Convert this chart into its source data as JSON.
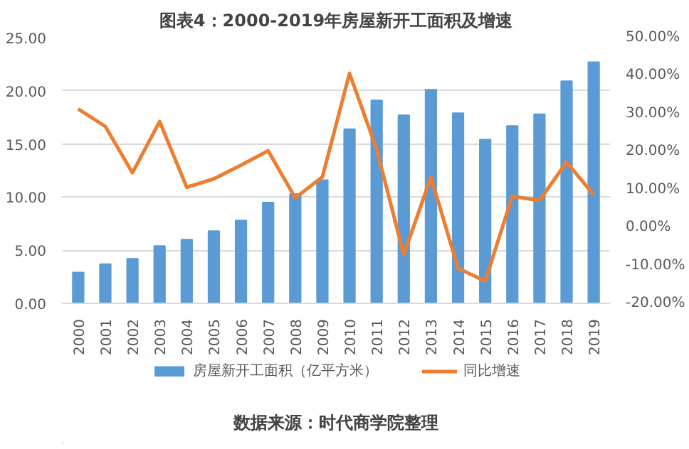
{
  "chart_data": {
    "type": "bar",
    "title": "图表4：2000-2019年房屋新开工面积及增速",
    "categories": [
      "2000",
      "2001",
      "2002",
      "2003",
      "2004",
      "2005",
      "2006",
      "2007",
      "2008",
      "2009",
      "2010",
      "2011",
      "2012",
      "2013",
      "2014",
      "2015",
      "2016",
      "2017",
      "2018",
      "2019"
    ],
    "series": [
      {
        "name": "房屋新开工面积（亿平方米）",
        "color": "#5b9bd5",
        "values": [
          2.9,
          3.7,
          4.2,
          5.4,
          6.0,
          6.8,
          7.8,
          9.5,
          10.3,
          11.6,
          16.4,
          19.1,
          17.7,
          20.1,
          17.9,
          15.4,
          16.7,
          17.8,
          20.9,
          22.7
        ]
      },
      {
        "name": "同比增速",
        "type": "line",
        "axis": "y2",
        "color": "#ed7d31",
        "values": [
          31.2,
          26.6,
          14.4,
          27.9,
          10.6,
          12.8,
          16.4,
          20.2,
          7.8,
          13.3,
          40.6,
          20.6,
          -7.2,
          13.3,
          -10.8,
          -14.1,
          8.2,
          7.1,
          17.2,
          8.6
        ]
      }
    ],
    "ylim": [
      0,
      25
    ],
    "yticks": [
      {
        "value": 0,
        "label": "0.00"
      },
      {
        "value": 5,
        "label": "5.00"
      },
      {
        "value": 10,
        "label": "10.00"
      },
      {
        "value": 15,
        "label": "15.00"
      },
      {
        "value": 20,
        "label": "20.00"
      },
      {
        "value": 25,
        "label": "25.00"
      }
    ],
    "y2lim": [
      -20,
      50
    ],
    "y2ticks": [
      {
        "value": -20,
        "label": "-20.00%"
      },
      {
        "value": -10,
        "label": "-10.00%"
      },
      {
        "value": 0,
        "label": "0.00%"
      },
      {
        "value": 10,
        "label": "10.00%"
      },
      {
        "value": 20,
        "label": "20.00%"
      },
      {
        "value": 30,
        "label": "30.00%"
      },
      {
        "value": 40,
        "label": "40.00%"
      },
      {
        "value": 50,
        "label": "50.00%"
      }
    ],
    "grid": "y",
    "legend": "bottom",
    "marker": "none",
    "line_style": "solid",
    "annotations": [
      "数据来源：时代商学院整理"
    ]
  }
}
